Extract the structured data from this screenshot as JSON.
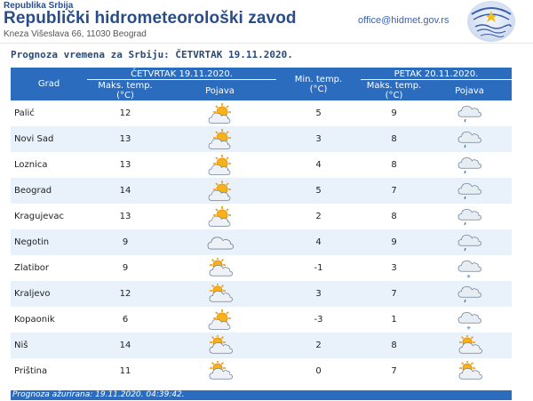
{
  "header": {
    "small_title": "Republika Srbija",
    "main_title": "Republički hidrometeorološki zavod",
    "address": "Kneza Višeslava 66, 11030 Beograd",
    "email": "office@hidmet.gov.rs"
  },
  "subtitle": "Prognoza vremena za Srbiju: ČETVRTAK  19.11.2020.",
  "table": {
    "group_day1": "ČETVRTAK  19.11.2020.",
    "group_day2": "PETAK  20.11.2020.",
    "col_city": "Grad",
    "col_max1_line1": "Maks. temp.",
    "col_max1_line2": "(°C)",
    "col_phen1": "Pojava",
    "col_min_line1": "Min. temp.",
    "col_min_line2": "(°C)",
    "col_max2_line1": "Maks. temp.",
    "col_max2_line2": "(°C)",
    "col_phen2": "Pojava",
    "rows": [
      {
        "city": "Palić",
        "max1": "12",
        "icon1": "sun-behind-cloud-icon",
        "min": "5",
        "max2": "9",
        "icon2": "cloud-light-rain-icon"
      },
      {
        "city": "Novi Sad",
        "max1": "13",
        "icon1": "sun-behind-cloud-icon",
        "min": "3",
        "max2": "8",
        "icon2": "cloud-light-rain-icon"
      },
      {
        "city": "Loznica",
        "max1": "13",
        "icon1": "sun-behind-cloud-icon",
        "min": "4",
        "max2": "8",
        "icon2": "cloud-light-rain-icon"
      },
      {
        "city": "Beograd",
        "max1": "14",
        "icon1": "sun-behind-cloud-icon",
        "min": "5",
        "max2": "7",
        "icon2": "cloud-light-rain-icon"
      },
      {
        "city": "Kragujevac",
        "max1": "13",
        "icon1": "sun-behind-cloud-icon",
        "min": "2",
        "max2": "8",
        "icon2": "cloud-light-rain-icon"
      },
      {
        "city": "Negotin",
        "max1": "9",
        "icon1": "cloud-icon",
        "min": "4",
        "max2": "9",
        "icon2": "cloud-light-rain-icon"
      },
      {
        "city": "Zlatibor",
        "max1": "9",
        "icon1": "cloud-with-sun-icon",
        "min": "-1",
        "max2": "3",
        "icon2": "cloud-snow-icon"
      },
      {
        "city": "Kraljevo",
        "max1": "12",
        "icon1": "cloud-with-sun-icon",
        "min": "3",
        "max2": "7",
        "icon2": "cloud-light-rain-icon"
      },
      {
        "city": "Kopaonik",
        "max1": "6",
        "icon1": "sun-behind-cloud-icon",
        "min": "-3",
        "max2": "1",
        "icon2": "cloud-snow-icon"
      },
      {
        "city": "Niš",
        "max1": "14",
        "icon1": "cloud-with-sun-icon",
        "min": "2",
        "max2": "8",
        "icon2": "cloud-with-sun-icon"
      },
      {
        "city": "Priština",
        "max1": "11",
        "icon1": "cloud-with-sun-icon",
        "min": "0",
        "max2": "7",
        "icon2": "cloud-with-sun-icon"
      }
    ]
  },
  "footer": "Prognoza ažurirana:  19.11.2020. 04:39:42."
}
